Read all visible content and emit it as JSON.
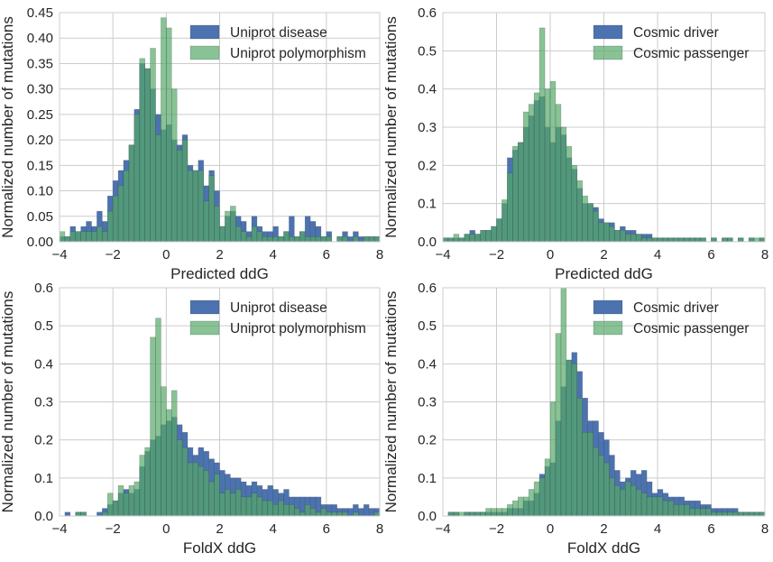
{
  "chart_data": [
    {
      "type": "bar",
      "subtype": "histogram-overlay",
      "xlabel": "Predicted ddG",
      "ylabel": "Normalized number of mutations",
      "xlim": [
        -4,
        8
      ],
      "ylim": [
        0,
        0.45
      ],
      "xticks": [
        "−4",
        "−2",
        "0",
        "2",
        "4",
        "6",
        "8"
      ],
      "yticks": [
        "0.00",
        "0.05",
        "0.10",
        "0.15",
        "0.20",
        "0.25",
        "0.30",
        "0.35",
        "0.40",
        "0.45"
      ],
      "bin_start": -4,
      "bin_width": 0.2,
      "legend_position": "top-right",
      "grid": true,
      "series": [
        {
          "name": "Uniprot disease",
          "color": "#4c72b0",
          "values": [
            0.01,
            0.01,
            0.03,
            0.02,
            0.03,
            0.04,
            0.03,
            0.06,
            0.04,
            0.09,
            0.12,
            0.14,
            0.16,
            0.19,
            0.26,
            0.35,
            0.34,
            0.3,
            0.25,
            0.22,
            0.23,
            0.2,
            0.19,
            0.21,
            0.15,
            0.14,
            0.16,
            0.11,
            0.14,
            0.1,
            0.03,
            0.05,
            0.06,
            0.05,
            0.04,
            0.02,
            0.05,
            0.03,
            0.02,
            0.02,
            0.03,
            0.01,
            0.02,
            0.05,
            0.01,
            0.02,
            0.05,
            0.04,
            0.03,
            0.01,
            0.02,
            0.0,
            0.01,
            0.02,
            0.01,
            0.02,
            0.01,
            0.01,
            0.01,
            0.01
          ]
        },
        {
          "name": "Uniprot polymorphism",
          "color": "#55a868",
          "values": [
            0.02,
            0.01,
            0.02,
            0.02,
            0.02,
            0.02,
            0.02,
            0.03,
            0.02,
            0.06,
            0.09,
            0.11,
            0.14,
            0.19,
            0.25,
            0.36,
            0.34,
            0.38,
            0.21,
            0.44,
            0.42,
            0.3,
            0.18,
            0.2,
            0.14,
            0.14,
            0.14,
            0.08,
            0.13,
            0.07,
            0.03,
            0.06,
            0.07,
            0.03,
            0.02,
            0.01,
            0.03,
            0.02,
            0.01,
            0.01,
            0.01,
            0.01,
            0.02,
            0.01,
            0.01,
            0.02,
            0.01,
            0.01,
            0.01,
            0.01,
            0.01,
            0.0,
            0.01,
            0.01,
            0.0,
            0.01,
            0.0,
            0.01,
            0.01,
            0.01
          ]
        }
      ]
    },
    {
      "type": "bar",
      "subtype": "histogram-overlay",
      "xlabel": "Predicted ddG",
      "ylabel": "Normalized number of mutations",
      "xlim": [
        -4,
        8
      ],
      "ylim": [
        0,
        0.6
      ],
      "xticks": [
        "−4",
        "−2",
        "0",
        "2",
        "4",
        "6",
        "8"
      ],
      "yticks": [
        "0.0",
        "0.1",
        "0.2",
        "0.3",
        "0.4",
        "0.5",
        "0.6"
      ],
      "bin_start": -4,
      "bin_width": 0.2,
      "legend_position": "top-right",
      "grid": true,
      "series": [
        {
          "name": "Cosmic driver",
          "color": "#4c72b0",
          "values": [
            0.01,
            0.01,
            0.01,
            0.01,
            0.02,
            0.03,
            0.02,
            0.03,
            0.03,
            0.04,
            0.06,
            0.1,
            0.22,
            0.24,
            0.26,
            0.3,
            0.33,
            0.37,
            0.38,
            0.3,
            0.26,
            0.3,
            0.28,
            0.22,
            0.19,
            0.14,
            0.1,
            0.1,
            0.09,
            0.06,
            0.05,
            0.05,
            0.03,
            0.04,
            0.03,
            0.03,
            0.02,
            0.02,
            0.02,
            0.01,
            0.01,
            0.01,
            0.01,
            0.01,
            0.01,
            0.01,
            0.01,
            0.01,
            0.01,
            0.0,
            0.01,
            0.0,
            0.01,
            0.01,
            0.0,
            0.01,
            0.0,
            0.01,
            0.0,
            0.01
          ]
        },
        {
          "name": "Cosmic passenger",
          "color": "#55a868",
          "values": [
            0.01,
            0.01,
            0.02,
            0.01,
            0.02,
            0.02,
            0.02,
            0.03,
            0.03,
            0.04,
            0.06,
            0.11,
            0.18,
            0.25,
            0.26,
            0.34,
            0.36,
            0.39,
            0.56,
            0.4,
            0.42,
            0.36,
            0.3,
            0.25,
            0.2,
            0.16,
            0.12,
            0.1,
            0.08,
            0.05,
            0.05,
            0.04,
            0.03,
            0.03,
            0.02,
            0.02,
            0.02,
            0.01,
            0.01,
            0.01,
            0.01,
            0.01,
            0.01,
            0.01,
            0.01,
            0.01,
            0.01,
            0.01,
            0.01,
            0.0,
            0.01,
            0.0,
            0.01,
            0.01,
            0.0,
            0.01,
            0.0,
            0.01,
            0.01,
            0.01
          ]
        }
      ]
    },
    {
      "type": "bar",
      "subtype": "histogram-overlay",
      "xlabel": "FoldX ddG",
      "ylabel": "Normalized number of mutations",
      "xlim": [
        -4,
        8
      ],
      "ylim": [
        0,
        0.6
      ],
      "xticks": [
        "−4",
        "−2",
        "0",
        "2",
        "4",
        "6",
        "8"
      ],
      "yticks": [
        "0.0",
        "0.1",
        "0.2",
        "0.3",
        "0.4",
        "0.5",
        "0.6"
      ],
      "bin_start": -4,
      "bin_width": 0.2,
      "legend_position": "top-right",
      "grid": true,
      "series": [
        {
          "name": "Uniprot disease",
          "color": "#4c72b0",
          "values": [
            0.0,
            0.01,
            0.0,
            0.01,
            0.01,
            0.0,
            0.0,
            0.01,
            0.02,
            0.03,
            0.04,
            0.06,
            0.07,
            0.06,
            0.07,
            0.13,
            0.17,
            0.2,
            0.21,
            0.24,
            0.25,
            0.26,
            0.24,
            0.22,
            0.18,
            0.16,
            0.18,
            0.17,
            0.15,
            0.14,
            0.12,
            0.11,
            0.1,
            0.1,
            0.09,
            0.08,
            0.09,
            0.08,
            0.07,
            0.08,
            0.07,
            0.06,
            0.07,
            0.05,
            0.05,
            0.05,
            0.05,
            0.05,
            0.05,
            0.03,
            0.03,
            0.03,
            0.02,
            0.02,
            0.02,
            0.03,
            0.02,
            0.03,
            0.02,
            0.02
          ]
        },
        {
          "name": "Uniprot polymorphism",
          "color": "#55a868",
          "values": [
            0.0,
            0.0,
            0.0,
            0.01,
            0.01,
            0.0,
            0.0,
            0.0,
            0.01,
            0.06,
            0.04,
            0.08,
            0.06,
            0.08,
            0.09,
            0.16,
            0.18,
            0.47,
            0.52,
            0.34,
            0.28,
            0.33,
            0.2,
            0.18,
            0.14,
            0.14,
            0.13,
            0.12,
            0.09,
            0.11,
            0.06,
            0.07,
            0.06,
            0.07,
            0.05,
            0.05,
            0.06,
            0.05,
            0.04,
            0.04,
            0.03,
            0.04,
            0.03,
            0.03,
            0.02,
            0.01,
            0.03,
            0.02,
            0.01,
            0.02,
            0.01,
            0.01,
            0.01,
            0.01,
            0.0,
            0.01,
            0.0,
            0.0,
            0.0,
            0.01
          ]
        }
      ]
    },
    {
      "type": "bar",
      "subtype": "histogram-overlay",
      "xlabel": "FoldX ddG",
      "ylabel": "Normalized number of mutations",
      "xlim": [
        -4,
        8
      ],
      "ylim": [
        0,
        0.6
      ],
      "xticks": [
        "−4",
        "−2",
        "0",
        "2",
        "4",
        "6",
        "8"
      ],
      "yticks": [
        "0.0",
        "0.1",
        "0.2",
        "0.3",
        "0.4",
        "0.5",
        "0.6"
      ],
      "bin_start": -4,
      "bin_width": 0.2,
      "legend_position": "top-right",
      "grid": true,
      "series": [
        {
          "name": "Cosmic driver",
          "color": "#4c72b0",
          "values": [
            0.0,
            0.01,
            0.01,
            0.0,
            0.01,
            0.01,
            0.01,
            0.01,
            0.01,
            0.01,
            0.01,
            0.01,
            0.02,
            0.02,
            0.02,
            0.04,
            0.04,
            0.06,
            0.11,
            0.13,
            0.14,
            0.25,
            0.34,
            0.41,
            0.43,
            0.38,
            0.31,
            0.25,
            0.25,
            0.22,
            0.2,
            0.16,
            0.12,
            0.09,
            0.1,
            0.12,
            0.11,
            0.12,
            0.09,
            0.06,
            0.07,
            0.06,
            0.05,
            0.05,
            0.05,
            0.04,
            0.04,
            0.04,
            0.03,
            0.03,
            0.02,
            0.02,
            0.02,
            0.02,
            0.02,
            0.01,
            0.01,
            0.01,
            0.01,
            0.01
          ]
        },
        {
          "name": "Cosmic passenger",
          "color": "#55a868",
          "values": [
            0.0,
            0.01,
            0.01,
            0.01,
            0.01,
            0.01,
            0.01,
            0.01,
            0.02,
            0.02,
            0.02,
            0.02,
            0.03,
            0.04,
            0.05,
            0.05,
            0.07,
            0.09,
            0.1,
            0.15,
            0.3,
            0.48,
            0.6,
            0.41,
            0.4,
            0.31,
            0.22,
            0.22,
            0.18,
            0.16,
            0.14,
            0.1,
            0.08,
            0.07,
            0.09,
            0.08,
            0.07,
            0.06,
            0.05,
            0.05,
            0.05,
            0.04,
            0.04,
            0.03,
            0.03,
            0.03,
            0.02,
            0.02,
            0.02,
            0.02,
            0.01,
            0.01,
            0.01,
            0.01,
            0.01,
            0.01,
            0.01,
            0.01,
            0.01,
            0.01
          ]
        }
      ]
    }
  ]
}
